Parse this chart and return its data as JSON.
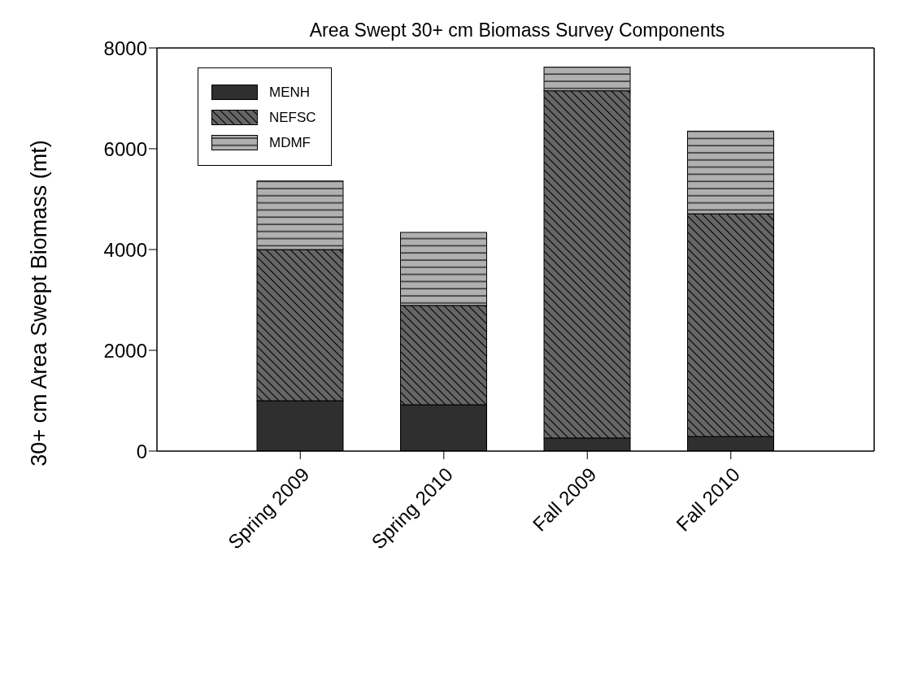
{
  "chart_data": {
    "type": "bar",
    "title": "Area Swept 30+ cm Biomass Survey Components",
    "ylabel": "30+ cm Area Swept Biomass (mt)",
    "categories": [
      "Spring 2009",
      "Spring 2010",
      "Fall 2009",
      "Fall 2010"
    ],
    "stacked": true,
    "series": [
      {
        "name": "MENH",
        "color": "#2f2f2f",
        "values": [
          1000,
          920,
          260,
          290
        ]
      },
      {
        "name": "NEFSC",
        "color": "#666666",
        "values": [
          3000,
          1970,
          6890,
          4420
        ]
      },
      {
        "name": "MDMF",
        "color": "#b0b0b0",
        "values": [
          1360,
          1450,
          470,
          1640
        ]
      }
    ],
    "ylim": [
      0,
      8000
    ],
    "yticks": [
      0,
      2000,
      4000,
      6000,
      8000
    ],
    "legend": "top left"
  }
}
